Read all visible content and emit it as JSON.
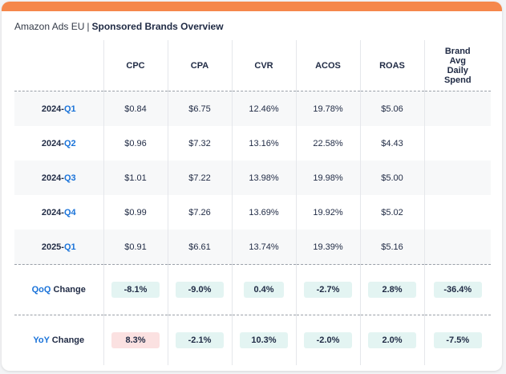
{
  "header": {
    "account": "Amazon Ads EU",
    "separator": "|",
    "report": "Sponsored Brands Overview"
  },
  "columns": [
    "CPC",
    "CPA",
    "CVR",
    "ACOS",
    "ROAS",
    "Brand Avg Daily Spend"
  ],
  "rows": [
    {
      "year": "2024-",
      "quarter": "Q1",
      "values": [
        "$0.84",
        "$6.75",
        "12.46%",
        "19.78%",
        "$5.06",
        ""
      ]
    },
    {
      "year": "2024-",
      "quarter": "Q2",
      "values": [
        "$0.96",
        "$7.32",
        "13.16%",
        "22.58%",
        "$4.43",
        ""
      ]
    },
    {
      "year": "2024-",
      "quarter": "Q3",
      "values": [
        "$1.01",
        "$7.22",
        "13.98%",
        "19.98%",
        "$5.00",
        ""
      ]
    },
    {
      "year": "2024-",
      "quarter": "Q4",
      "values": [
        "$0.99",
        "$7.26",
        "13.69%",
        "19.92%",
        "$5.02",
        ""
      ]
    },
    {
      "year": "2025-",
      "quarter": "Q1",
      "values": [
        "$0.91",
        "$6.61",
        "13.74%",
        "19.39%",
        "$5.16",
        ""
      ]
    }
  ],
  "qoq": {
    "prefix": "QoQ",
    "suffix": " Change",
    "values": [
      "-8.1%",
      "-9.0%",
      "0.4%",
      "-2.7%",
      "2.8%",
      "-36.4%"
    ]
  },
  "yoy": {
    "prefix": "YoY",
    "suffix": " Change",
    "values": [
      "8.3%",
      "-2.1%",
      "10.3%",
      "-2.0%",
      "2.0%",
      "-7.5%"
    ]
  },
  "colors": {
    "accent_bar": "#f5874b",
    "highlight_blue": "#1a73d9",
    "chip_good": "#e3f4f2",
    "chip_bad": "#fbe1e1"
  }
}
